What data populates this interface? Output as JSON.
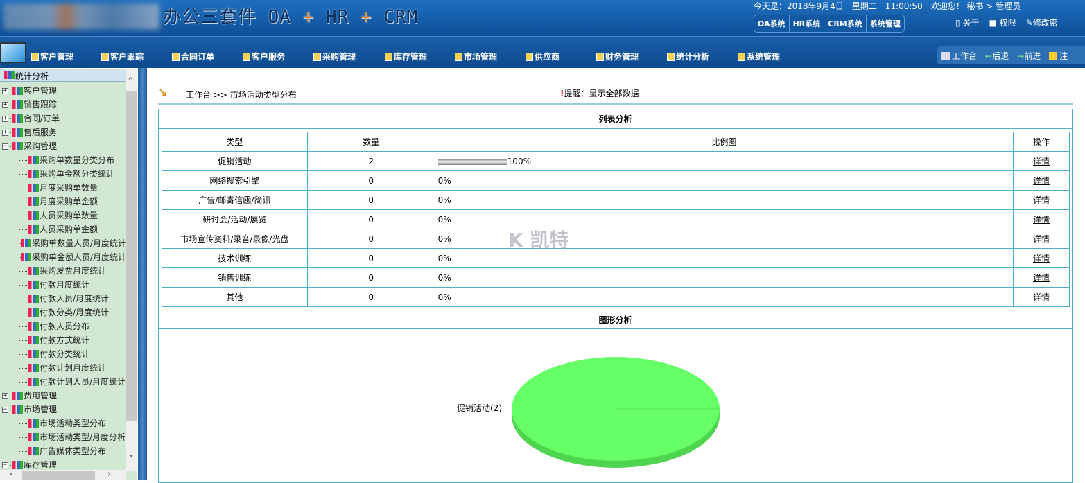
{
  "header": {
    "title_main": "办公三套件 OA",
    "title_plus": "+",
    "title_hr": "HR",
    "title_crm": "CRM",
    "info": "今天是：2018年9月4日　星期二　11:00:50　欢迎您！ 秘书 > 管理员",
    "sys_tabs": [
      "OA系统",
      "HR系统",
      "CRM系统",
      "系统管理"
    ],
    "tools": [
      "关于",
      "权限",
      "修改密"
    ]
  },
  "nav": {
    "items": [
      "客户管理",
      "客户跟踪",
      "合同订单",
      "客户服务",
      "采购管理",
      "库存管理",
      "市场管理",
      "供应商",
      "财务管理",
      "统计分析",
      "系统管理"
    ],
    "quick": [
      "工作台",
      "后退",
      "前进",
      "注"
    ]
  },
  "sidebar": {
    "root": "统计分析",
    "nodes": [
      {
        "label": "客户管理",
        "type": "collapsed"
      },
      {
        "label": "销售跟踪",
        "type": "collapsed"
      },
      {
        "label": "合同/订单",
        "type": "collapsed"
      },
      {
        "label": "售后服务",
        "type": "collapsed"
      },
      {
        "label": "采购管理",
        "type": "expanded"
      },
      {
        "label": "采购单数量分类分布",
        "type": "child"
      },
      {
        "label": "采购单金额分类统计",
        "type": "child"
      },
      {
        "label": "月度采购单数量",
        "type": "child"
      },
      {
        "label": "月度采购单金额",
        "type": "child"
      },
      {
        "label": "人员采购单数量",
        "type": "child"
      },
      {
        "label": "人员采购单金额",
        "type": "child"
      },
      {
        "label": "采购单数量人员/月度统计",
        "type": "child"
      },
      {
        "label": "采购单金额人员/月度统计",
        "type": "child"
      },
      {
        "label": "采购发票月度统计",
        "type": "child"
      },
      {
        "label": "付款月度统计",
        "type": "child"
      },
      {
        "label": "付款人员/月度统计",
        "type": "child"
      },
      {
        "label": "付款分类/月度统计",
        "type": "child"
      },
      {
        "label": "付款人员分布",
        "type": "child"
      },
      {
        "label": "付款方式统计",
        "type": "child"
      },
      {
        "label": "付款分类统计",
        "type": "child"
      },
      {
        "label": "付款计划月度统计",
        "type": "child"
      },
      {
        "label": "付款计划人员/月度统计",
        "type": "child"
      },
      {
        "label": "费用管理",
        "type": "collapsed"
      },
      {
        "label": "市场管理",
        "type": "expanded"
      },
      {
        "label": "市场活动类型分布",
        "type": "child"
      },
      {
        "label": "市场活动类型/月度分析",
        "type": "child"
      },
      {
        "label": "广告媒体类型分布",
        "type": "child"
      },
      {
        "label": "库存管理",
        "type": "expanded"
      }
    ]
  },
  "main": {
    "breadcrumb": "工作台 >> 市场活动类型分布",
    "hint": "提醒：显示全部数据",
    "list_title": "列表分析",
    "chart_title": "图形分析",
    "columns": [
      "类型",
      "数量",
      "比例图",
      "操作"
    ],
    "rows": [
      {
        "type": "促销活动",
        "count": "2",
        "pct": "100%",
        "pct_value": 100,
        "action": "详情"
      },
      {
        "type": "网络搜索引擎",
        "count": "0",
        "pct": "0%",
        "pct_value": 0,
        "action": "详情"
      },
      {
        "type": "广告/邮寄信函/简讯",
        "count": "0",
        "pct": "0%",
        "pct_value": 0,
        "action": "详情"
      },
      {
        "type": "研讨会/活动/展览",
        "count": "0",
        "pct": "0%",
        "pct_value": 0,
        "action": "详情"
      },
      {
        "type": "市场宣传资料/录音/录像/光盘",
        "count": "0",
        "pct": "0%",
        "pct_value": 0,
        "action": "详情"
      },
      {
        "type": "技术训练",
        "count": "0",
        "pct": "0%",
        "pct_value": 0,
        "action": "详情"
      },
      {
        "type": "销售训练",
        "count": "0",
        "pct": "0%",
        "pct_value": 0,
        "action": "详情"
      },
      {
        "type": "其他",
        "count": "0",
        "pct": "0%",
        "pct_value": 0,
        "action": "详情"
      }
    ],
    "pie": {
      "label": "促销活动(2)",
      "value": 2,
      "color": "#66ff66"
    }
  },
  "watermark": "K 凯特"
}
